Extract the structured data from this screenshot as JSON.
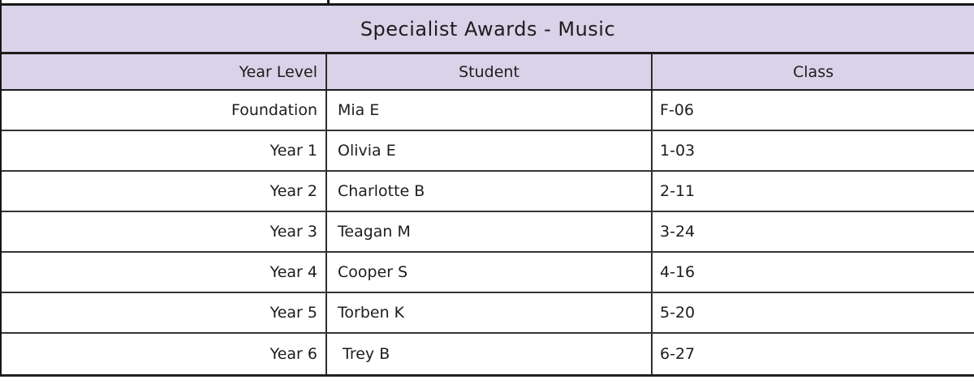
{
  "table": {
    "title": "Specialist Awards - Music",
    "columns": {
      "year_level": "Year Level",
      "student": "Student",
      "class": "Class"
    },
    "rows": [
      {
        "year_level": "Foundation",
        "student": "Mia E",
        "class": "F-06"
      },
      {
        "year_level": "Year 1",
        "student": "Olivia E",
        "class": "1-03"
      },
      {
        "year_level": "Year 2",
        "student": "Charlotte B",
        "class": "2-11"
      },
      {
        "year_level": "Year 3",
        "student": "Teagan M",
        "class": "3-24"
      },
      {
        "year_level": "Year 4",
        "student": "Cooper S",
        "class": "4-16"
      },
      {
        "year_level": "Year 5",
        "student": "Torben K",
        "class": "5-20"
      },
      {
        "year_level": "Year 6",
        "student": " Trey B",
        "class": "6-27"
      }
    ],
    "colors": {
      "header_bg": "#d9d2e8",
      "border": "#2e2e2e",
      "row_bg": "#ffffff"
    }
  }
}
